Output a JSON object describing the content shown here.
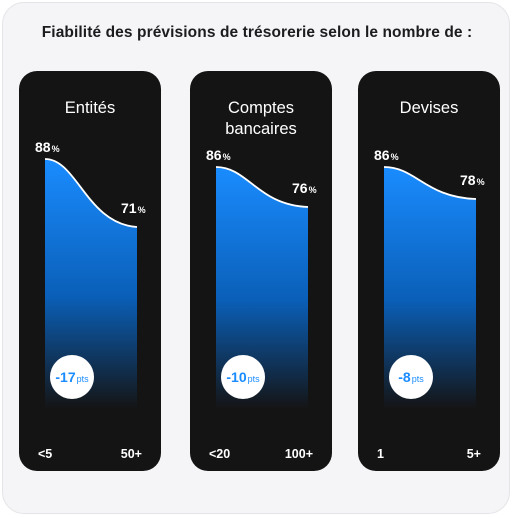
{
  "title": "Fiabilité des prévisions de trésorerie selon le nombre de :",
  "colors": {
    "panel_bg": "#141414",
    "gradient_top": "#1a8cff",
    "gradient_bottom": "#141414",
    "accent": "#1a8cff"
  },
  "chart_data": [
    {
      "type": "area",
      "title": "Entités",
      "x_labels": [
        "<5",
        "50+"
      ],
      "start_value": 88,
      "end_value": 71,
      "unit": "%",
      "difference": "-17",
      "difference_unit": "pts",
      "ylim": [
        0,
        100
      ]
    },
    {
      "type": "area",
      "title": "Comptes bancaires",
      "x_labels": [
        "<20",
        "100+"
      ],
      "start_value": 86,
      "end_value": 76,
      "unit": "%",
      "difference": "-10",
      "difference_unit": "pts",
      "ylim": [
        0,
        100
      ]
    },
    {
      "type": "area",
      "title": "Devises",
      "x_labels": [
        "1",
        "5+"
      ],
      "start_value": 86,
      "end_value": 78,
      "unit": "%",
      "difference": "-8",
      "difference_unit": "pts",
      "ylim": [
        0,
        100
      ]
    }
  ]
}
